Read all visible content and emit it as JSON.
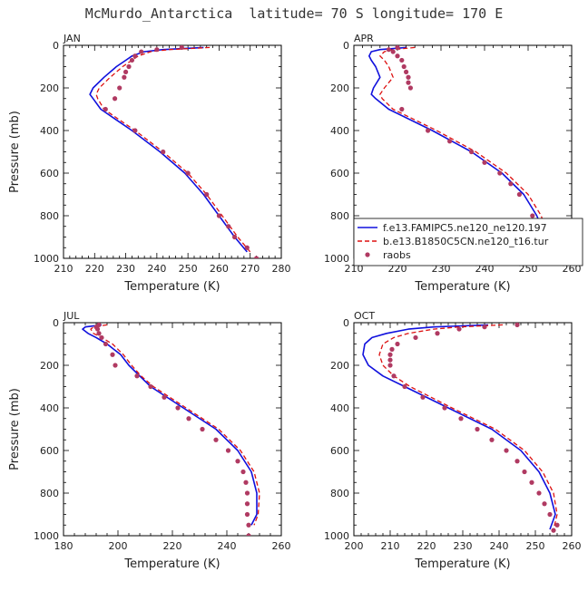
{
  "title": "McMurdo_Antarctica  latitude= 70 S longitude= 170 E",
  "colors": {
    "model1": "#1010dd",
    "model2": "#dd1111",
    "obs": "#b03a62"
  },
  "legend": {
    "panel": 1,
    "entries": [
      {
        "label": "f.e13.FAMIPC5.ne120_ne120.197",
        "style": "solid",
        "color": "#1010dd"
      },
      {
        "label": "b.e13.B1850C5CN.ne120_t16.tur",
        "style": "dashed",
        "color": "#dd1111"
      },
      {
        "label": "raobs",
        "style": "marker",
        "color": "#b03a62"
      }
    ]
  },
  "chart_data": [
    {
      "type": "line",
      "panel_label": "JAN",
      "xlabel": "Temperature (K)",
      "ylabel": "Pressure (mb)",
      "xlim": [
        210,
        280
      ],
      "xticks": [
        210,
        220,
        230,
        240,
        250,
        260,
        270,
        280
      ],
      "ylim": [
        0,
        1000
      ],
      "yinverted": true,
      "yticks": [
        0,
        200,
        400,
        600,
        800,
        1000
      ],
      "series": [
        {
          "name": "f.e13.FAMIPC5.ne120_ne120.197",
          "style": "solid",
          "p": [
            10,
            20,
            30,
            50,
            70,
            100,
            150,
            200,
            230,
            250,
            300,
            350,
            400,
            500,
            600,
            700,
            800,
            900,
            970
          ],
          "t": [
            255,
            242,
            236,
            232,
            230,
            227,
            223,
            219.5,
            218.5,
            219.5,
            222,
            227,
            232,
            241,
            249,
            255,
            260,
            265,
            269
          ]
        },
        {
          "name": "b.e13.B1850C5CN.ne120_t16.tur",
          "style": "dashed",
          "p": [
            10,
            20,
            30,
            50,
            70,
            100,
            150,
            200,
            230,
            250,
            300,
            350,
            400,
            500,
            600,
            700,
            800,
            900,
            970
          ],
          "t": [
            257,
            244,
            238,
            234,
            232,
            229,
            225,
            221.5,
            220.5,
            221,
            223,
            228,
            233,
            242,
            250,
            256,
            261,
            266,
            270
          ]
        },
        {
          "name": "raobs",
          "style": "marker",
          "p": [
            10,
            20,
            30,
            50,
            70,
            100,
            125,
            150,
            200,
            250,
            300,
            400,
            500,
            600,
            700,
            800,
            850,
            900,
            950,
            1000
          ],
          "t": [
            248,
            240,
            235,
            233,
            232,
            231,
            230,
            229.5,
            228,
            226.5,
            223.5,
            233,
            242,
            250,
            256,
            260,
            263,
            265,
            269,
            272
          ]
        }
      ]
    },
    {
      "type": "line",
      "panel_label": "APR",
      "xlabel": "Temperature (K)",
      "ylabel": "",
      "xlim": [
        210,
        260
      ],
      "xticks": [
        210,
        220,
        230,
        240,
        250,
        260
      ],
      "ylim": [
        0,
        1000
      ],
      "yinverted": true,
      "yticks": [
        0,
        200,
        400,
        600,
        800,
        1000
      ],
      "series": [
        {
          "name": "f.e13.FAMIPC5.ne120_ne120.197",
          "style": "solid",
          "p": [
            10,
            20,
            30,
            50,
            70,
            100,
            150,
            200,
            230,
            250,
            300,
            400,
            500,
            600,
            700,
            800,
            900,
            970
          ],
          "t": [
            222,
            216,
            214,
            213.5,
            214,
            215,
            216,
            214.5,
            214,
            215,
            218,
            228,
            237,
            244,
            249,
            252,
            254,
            255
          ]
        },
        {
          "name": "b.e13.B1850C5CN.ne120_t16.tur",
          "style": "dashed",
          "p": [
            10,
            20,
            30,
            50,
            70,
            100,
            150,
            200,
            230,
            250,
            300,
            400,
            500,
            600,
            700,
            800,
            900,
            970
          ],
          "t": [
            224,
            219,
            217,
            216,
            217,
            218,
            219,
            217,
            216,
            216.5,
            219,
            229,
            238,
            245,
            250,
            253,
            254.5,
            255
          ]
        },
        {
          "name": "raobs",
          "style": "marker",
          "p": [
            10,
            20,
            30,
            50,
            70,
            100,
            125,
            150,
            175,
            200,
            300,
            400,
            450,
            500,
            550,
            600,
            650,
            700,
            800,
            850,
            900,
            950
          ],
          "t": [
            220,
            218,
            219,
            220,
            221,
            221.5,
            222,
            222.5,
            222.5,
            223,
            221,
            227,
            232,
            237,
            240,
            243.5,
            246,
            248,
            251,
            252,
            253,
            253.5
          ]
        }
      ]
    },
    {
      "type": "line",
      "panel_label": "JUL",
      "xlabel": "Temperature (K)",
      "ylabel": "Pressure (mb)",
      "xlim": [
        180,
        260
      ],
      "xticks": [
        180,
        200,
        220,
        240,
        260
      ],
      "ylim": [
        0,
        1000
      ],
      "yinverted": true,
      "yticks": [
        0,
        200,
        400,
        600,
        800,
        1000
      ],
      "series": [
        {
          "name": "f.e13.FAMIPC5.ne120_ne120.197",
          "style": "solid",
          "p": [
            10,
            20,
            30,
            50,
            70,
            100,
            150,
            200,
            250,
            300,
            400,
            500,
            600,
            700,
            800,
            900,
            950
          ],
          "t": [
            194,
            188,
            187,
            189,
            192,
            196,
            201,
            204,
            208,
            212,
            224,
            236,
            244,
            249,
            251,
            251,
            249
          ]
        },
        {
          "name": "b.e13.B1850C5CN.ne120_t16.tur",
          "style": "dashed",
          "p": [
            10,
            20,
            30,
            50,
            70,
            100,
            150,
            200,
            250,
            300,
            400,
            500,
            600,
            700,
            800,
            900,
            950
          ],
          "t": [
            196,
            191,
            190,
            191,
            194,
            198,
            202,
            205,
            208.5,
            213,
            225,
            237,
            245,
            250,
            252,
            251.5,
            250
          ]
        },
        {
          "name": "raobs",
          "style": "marker",
          "p": [
            10,
            20,
            30,
            50,
            70,
            100,
            150,
            200,
            250,
            300,
            350,
            400,
            450,
            500,
            550,
            600,
            650,
            700,
            750,
            800,
            850,
            900,
            950,
            1000
          ],
          "t": [
            193,
            192,
            192.5,
            193,
            194,
            195.5,
            198,
            199,
            207,
            212,
            217,
            222,
            226,
            231,
            236,
            240.5,
            244,
            246,
            247,
            247.5,
            247.5,
            247.5,
            248,
            248
          ]
        }
      ]
    },
    {
      "type": "line",
      "panel_label": "OCT",
      "xlabel": "Temperature (K)",
      "ylabel": "",
      "xlim": [
        200,
        260
      ],
      "xticks": [
        200,
        210,
        220,
        230,
        240,
        250,
        260
      ],
      "ylim": [
        0,
        1000
      ],
      "yinverted": true,
      "yticks": [
        0,
        200,
        400,
        600,
        800,
        1000
      ],
      "series": [
        {
          "name": "f.e13.FAMIPC5.ne120_ne120.197",
          "style": "solid",
          "p": [
            10,
            20,
            30,
            50,
            70,
            100,
            150,
            200,
            250,
            300,
            400,
            500,
            600,
            700,
            800,
            900,
            970
          ],
          "t": [
            237,
            222,
            215,
            209,
            205,
            203,
            202.5,
            204,
            208,
            214,
            226,
            238,
            246,
            251,
            254,
            255.5,
            254
          ]
        },
        {
          "name": "b.e13.B1850C5CN.ne120_t16.tur",
          "style": "dashed",
          "p": [
            10,
            20,
            30,
            50,
            70,
            100,
            150,
            200,
            250,
            300,
            400,
            500,
            600,
            700,
            800,
            900,
            970
          ],
          "t": [
            241,
            229,
            222,
            215,
            211,
            208,
            207,
            208,
            211,
            215.5,
            227,
            239,
            247,
            252,
            255,
            256,
            255
          ]
        },
        {
          "name": "raobs",
          "style": "marker",
          "p": [
            10,
            20,
            30,
            50,
            70,
            100,
            125,
            150,
            175,
            200,
            250,
            300,
            350,
            400,
            450,
            500,
            550,
            600,
            650,
            700,
            750,
            800,
            850,
            900,
            950,
            975
          ],
          "t": [
            245,
            236,
            229,
            223,
            217,
            212,
            210.5,
            210,
            210,
            210,
            211,
            214,
            219,
            225,
            229.5,
            234,
            238,
            242,
            245,
            247,
            249,
            251,
            252.5,
            254,
            256,
            255
          ]
        }
      ]
    }
  ]
}
